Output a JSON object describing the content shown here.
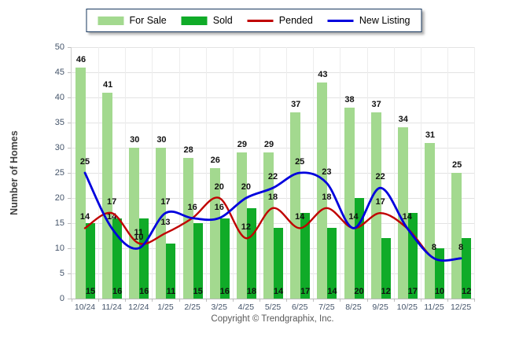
{
  "legend": {
    "items": [
      {
        "label": "For Sale",
        "type": "bar",
        "color": "#A3D98F"
      },
      {
        "label": "Sold",
        "type": "bar",
        "color": "#10AB28"
      },
      {
        "label": "Pended",
        "type": "line",
        "color": "#C00000"
      },
      {
        "label": "New Listing",
        "type": "line",
        "color": "#0000DD"
      }
    ]
  },
  "y_axis": {
    "title": "Number of Homes",
    "ticks": [
      0,
      5,
      10,
      15,
      20,
      25,
      30,
      35,
      40,
      45,
      50
    ]
  },
  "footer": {
    "text": "Copyright © Trendgraphix, Inc."
  },
  "chart_data": {
    "type": "bar",
    "subtype": "grouped bars with smoothed line overlays",
    "categories": [
      "10/24",
      "11/24",
      "12/24",
      "1/25",
      "2/25",
      "3/25",
      "4/25",
      "5/25",
      "6/25",
      "7/25",
      "8/25",
      "9/25",
      "10/25",
      "11/25",
      "12/25"
    ],
    "series": [
      {
        "name": "For Sale",
        "type": "bar",
        "color": "#A3D98F",
        "values": [
          46,
          41,
          30,
          30,
          28,
          26,
          29,
          29,
          37,
          43,
          38,
          37,
          34,
          31,
          25
        ]
      },
      {
        "name": "Sold",
        "type": "bar",
        "color": "#10AB28",
        "values": [
          15,
          16,
          16,
          11,
          15,
          16,
          18,
          14,
          17,
          14,
          20,
          12,
          17,
          10,
          12
        ]
      },
      {
        "name": "Pended",
        "type": "line",
        "color": "#C00000",
        "values": [
          14,
          17,
          11,
          13,
          16,
          20,
          12,
          18,
          14,
          18,
          14,
          17,
          14,
          8,
          8
        ]
      },
      {
        "name": "New Listing",
        "type": "line",
        "color": "#0000DD",
        "values": [
          25,
          14,
          10,
          17,
          16,
          16,
          20,
          22,
          25,
          23,
          14,
          22,
          14,
          8,
          8
        ]
      }
    ],
    "title": "",
    "xlabel": "",
    "ylabel": "Number of Homes",
    "ylim": [
      0,
      50
    ],
    "grid": true,
    "legend_position": "top center"
  }
}
